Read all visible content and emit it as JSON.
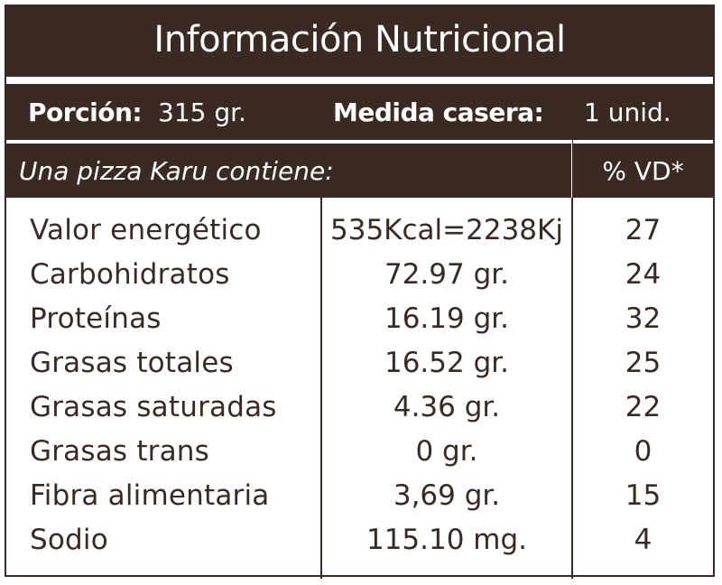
{
  "title": "Información Nutricional",
  "portion": {
    "label": "Porción:",
    "value": "315 gr."
  },
  "household": {
    "label": "Medida casera:",
    "value": "1 unid."
  },
  "contains_label": "Una pizza Karu contiene:",
  "vd_header": "% VD*",
  "rows": [
    {
      "name": "Valor energético",
      "amount": "535Kcal=2238Kj",
      "vd": "27"
    },
    {
      "name": "Carbohidratos",
      "amount": "72.97 gr.",
      "vd": "24"
    },
    {
      "name": "Proteínas",
      "amount": "16.19 gr.",
      "vd": "32"
    },
    {
      "name": "Grasas totales",
      "amount": "16.52 gr.",
      "vd": "25"
    },
    {
      "name": "Grasas saturadas",
      "amount": "4.36 gr.",
      "vd": "22"
    },
    {
      "name": "Grasas trans",
      "amount": "0 gr.",
      "vd": "0"
    },
    {
      "name": "Fibra alimentaria",
      "amount": "3,69 gr.",
      "vd": "15"
    },
    {
      "name": "Sodio",
      "amount": "115.10 mg.",
      "vd": "4"
    }
  ],
  "colors": {
    "dark": "#3b2a23",
    "text": "#3b2a23",
    "light": "#ffffff"
  }
}
